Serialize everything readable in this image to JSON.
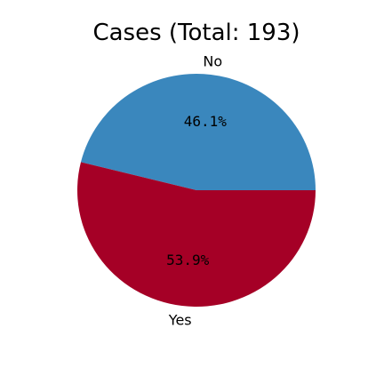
{
  "chart_data": {
    "type": "pie",
    "title": "Cases (Total: 193)",
    "categories": [
      "No",
      "Yes"
    ],
    "values": [
      89,
      104
    ],
    "percent_labels": [
      "46.1%",
      "53.9%"
    ],
    "colors": [
      "#3a87bd",
      "#a50026"
    ],
    "start_angle_deg": 0,
    "direction": "counterclockwise"
  }
}
